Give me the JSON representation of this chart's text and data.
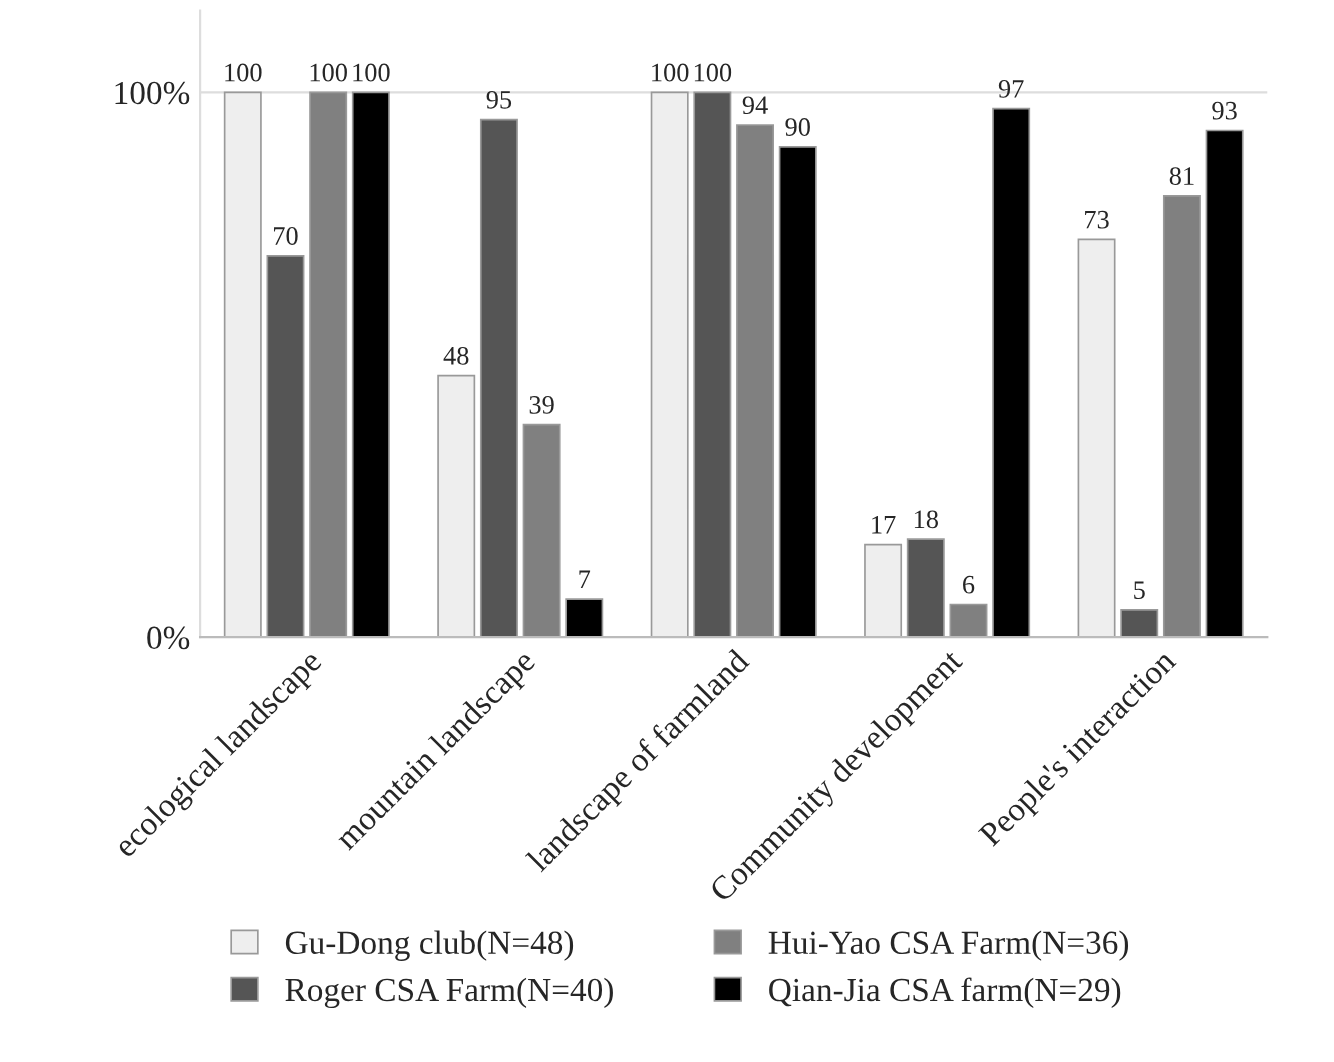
{
  "chart_data": {
    "type": "bar",
    "categories": [
      "ecological landscape",
      "mountain landscape",
      "landscape of farmland",
      "Community development",
      "People's interaction"
    ],
    "series": [
      {
        "name": "Gu-Dong club(N=48)",
        "color": "#eeeeee",
        "values": [
          100,
          48,
          100,
          17,
          73
        ]
      },
      {
        "name": "Roger CSA Farm(N=40)",
        "color": "#555555",
        "values": [
          70,
          95,
          100,
          18,
          5
        ]
      },
      {
        "name": "Hui-Yao CSA Farm(N=36)",
        "color": "#808080",
        "values": [
          100,
          39,
          94,
          6,
          81
        ]
      },
      {
        "name": "Qian-Jia CSA farm(N=29)",
        "color": "#000000",
        "values": [
          100,
          7,
          90,
          97,
          93
        ]
      }
    ],
    "ylim": [
      0,
      115
    ],
    "yticks": [
      {
        "value": 0,
        "label": "0%"
      },
      {
        "value": 100,
        "label": "100%"
      }
    ],
    "grid": "y",
    "legend": "bottom",
    "data_labels": true
  }
}
